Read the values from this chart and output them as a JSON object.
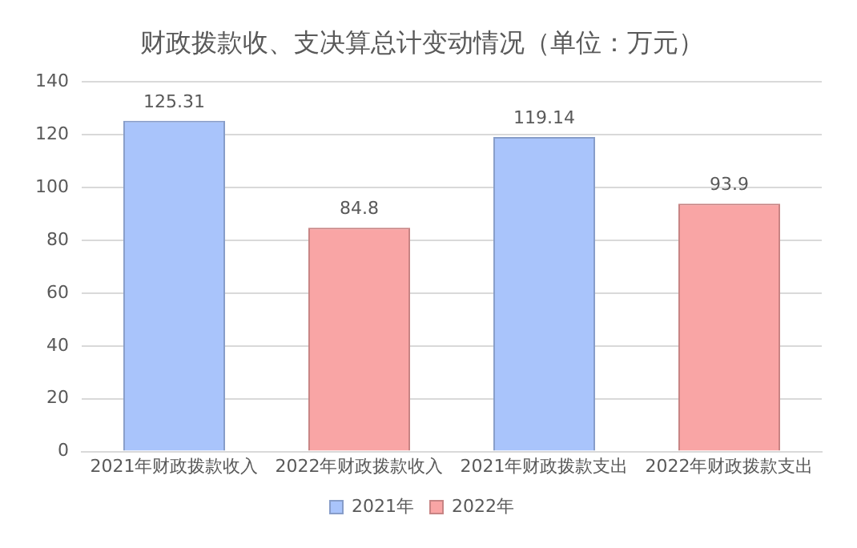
{
  "chart_data": {
    "type": "bar",
    "title": "财政拨款收、支决算总计变动情况（单位：万元）",
    "categories": [
      "2021年财政拨款收入",
      "2022年财政拨款收入",
      "2021年财政拨款支出",
      "2022年财政拨款支出"
    ],
    "series": [
      {
        "name": "2021年",
        "color": "#a9c4fb",
        "values": [
          125.31,
          null,
          119.14,
          null
        ]
      },
      {
        "name": "2022年",
        "color": "#f9a5a5",
        "values": [
          null,
          84.8,
          null,
          93.9
        ]
      }
    ],
    "ylim": [
      0,
      140
    ],
    "yticks": [
      0,
      20,
      40,
      60,
      80,
      100,
      120,
      140
    ],
    "grid": "y",
    "legend": "bottom",
    "data_labels": true
  }
}
